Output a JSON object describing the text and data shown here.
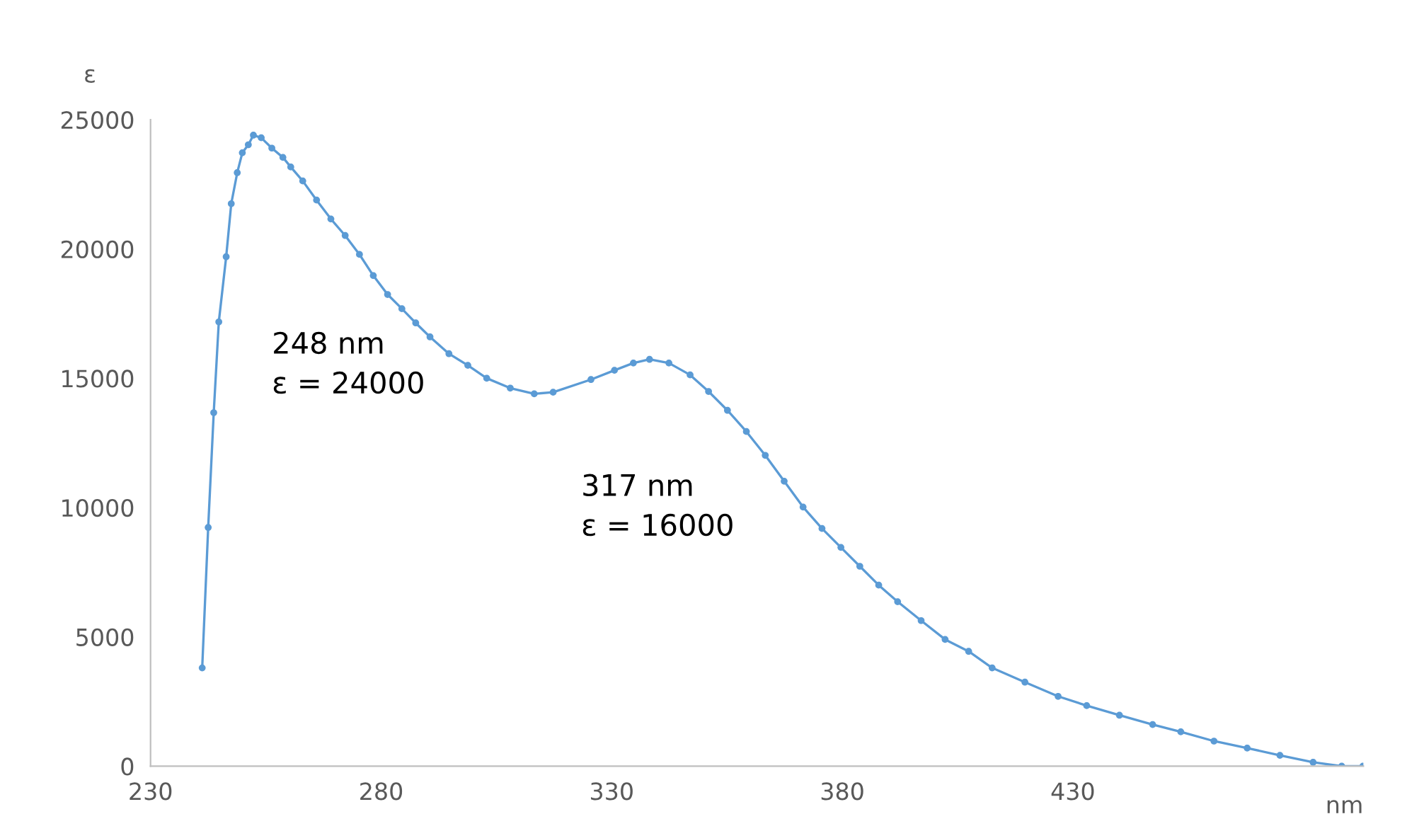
{
  "chart_data": {
    "type": "line",
    "xlabel": "nm",
    "ylabel": "ε",
    "x": [
      241.2,
      242.5,
      243.7,
      244.8,
      246.4,
      247.5,
      248.8,
      249.9,
      251.2,
      252.3,
      254.0,
      256.3,
      258.7,
      260.4,
      263.0,
      266.0,
      269.1,
      272.2,
      275.3,
      278.3,
      281.4,
      284.5,
      287.5,
      290.6,
      294.7,
      298.8,
      302.9,
      308.0,
      313.2,
      317.3,
      325.5,
      330.6,
      334.7,
      338.2,
      342.4,
      347.0,
      351.0,
      355.1,
      359.2,
      363.3,
      367.4,
      371.5,
      375.6,
      379.7,
      383.8,
      387.9,
      392.0,
      397.1,
      402.3,
      407.4,
      412.5,
      419.6,
      426.8,
      433.0,
      440.1,
      447.3,
      453.4,
      460.6,
      467.8,
      474.9,
      482.1,
      488.3,
      492.9
    ],
    "series": [
      {
        "color": "#5b9bd5",
        "values": [
          3800,
          9230,
          13670,
          17180,
          19700,
          21750,
          22950,
          23720,
          24030,
          24400,
          24300,
          23900,
          23540,
          23170,
          22630,
          21890,
          21160,
          20520,
          19790,
          18970,
          18240,
          17690,
          17140,
          16600,
          15950,
          15500,
          15000,
          14620,
          14400,
          14460,
          14950,
          15310,
          15590,
          15730,
          15590,
          15130,
          14490,
          13760,
          12940,
          12020,
          11020,
          10020,
          9190,
          8460,
          7730,
          7000,
          6360,
          5630,
          4900,
          4440,
          3800,
          3250,
          2700,
          2340,
          1970,
          1610,
          1330,
          970,
          700,
          420,
          150,
          0,
          0
        ]
      }
    ],
    "xlim": [
      230,
      493
    ],
    "xticks": [
      230,
      280,
      330,
      380,
      430
    ],
    "ylim": [
      0,
      25000
    ],
    "yticks": [
      0,
      5000,
      10000,
      15000,
      20000,
      25000
    ],
    "grid": false,
    "marker": "circle",
    "line_style": "solid",
    "annotations": [
      "248 nm\nε = 24000",
      "317 nm\nε = 16000"
    ]
  }
}
